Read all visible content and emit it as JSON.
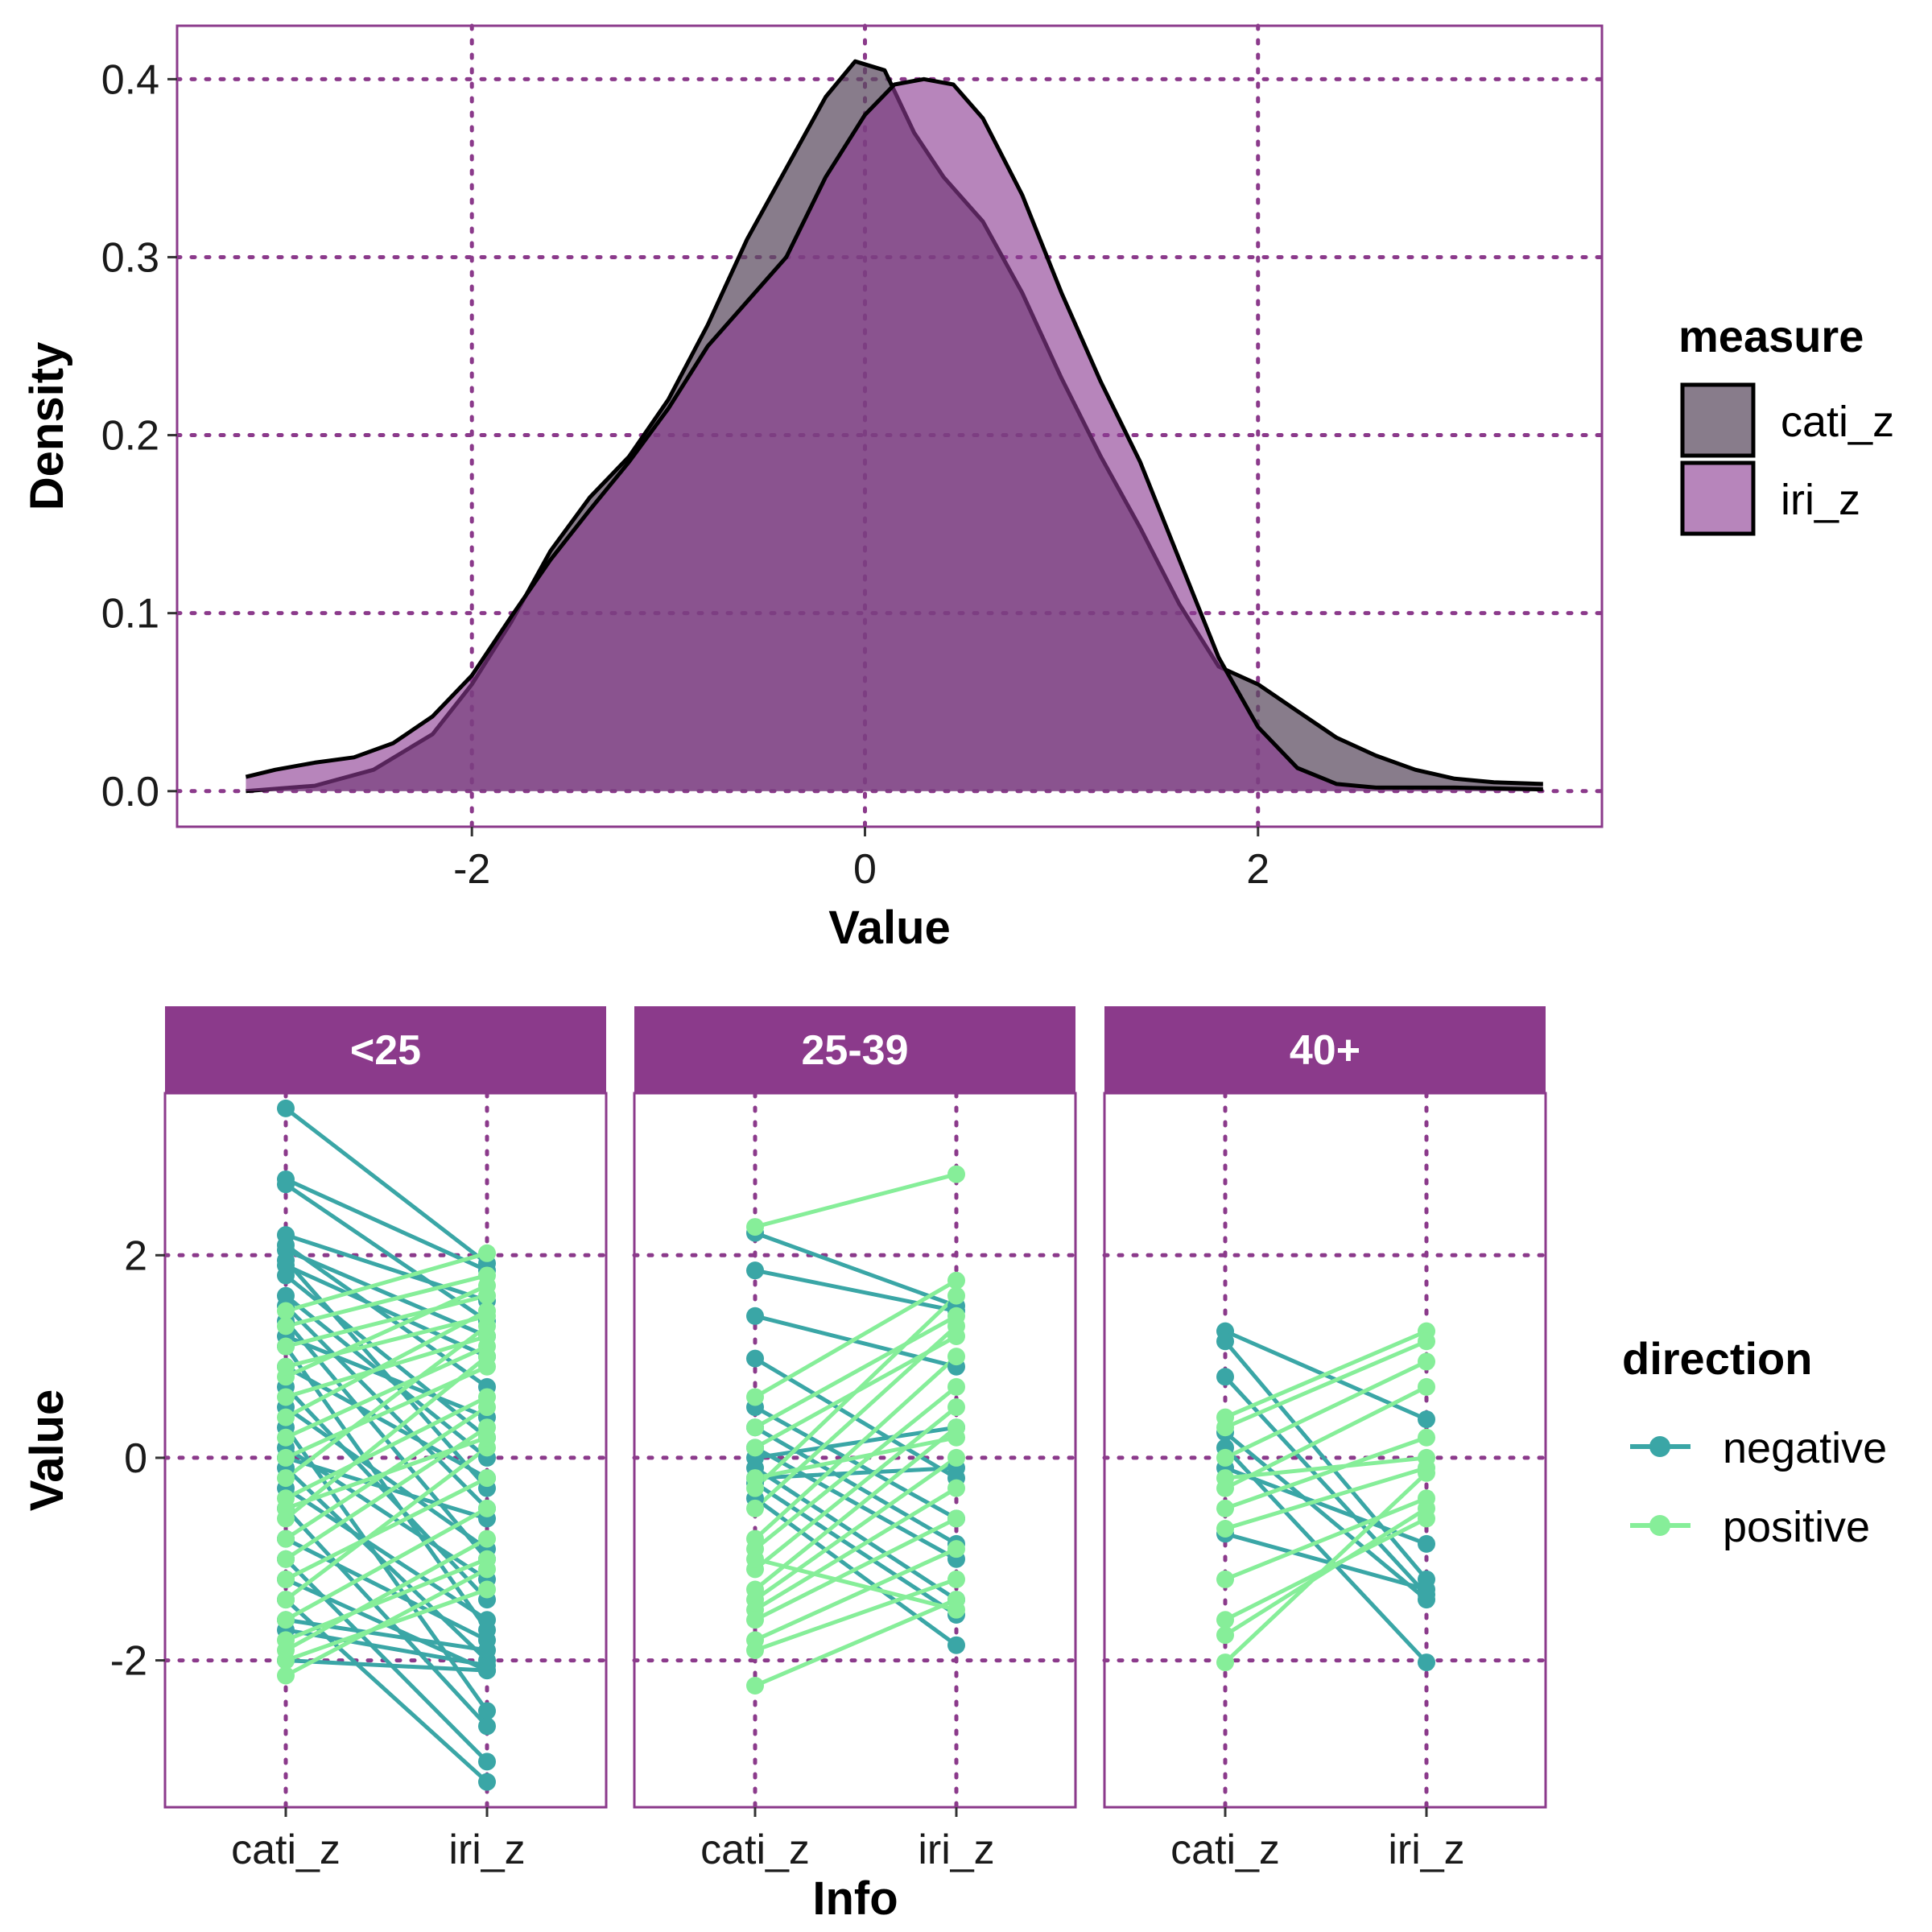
{
  "chart_data": [
    {
      "type": "area",
      "title": "",
      "xlabel": "Value",
      "ylabel": "Density",
      "xlim": [
        -3.5,
        3.75
      ],
      "ylim": [
        -0.02,
        0.43
      ],
      "x_ticks": [
        "-2",
        "0",
        "2"
      ],
      "x_tick_values": [
        -2,
        0,
        2
      ],
      "y_ticks": [
        "0.0",
        "0.1",
        "0.2",
        "0.3",
        "0.4"
      ],
      "y_tick_values": [
        0.0,
        0.1,
        0.2,
        0.3,
        0.4
      ],
      "grid": true,
      "legend": {
        "title": "measure",
        "placement": "right"
      },
      "series": [
        {
          "name": "cati_z",
          "color": "#5a4a5e",
          "points": [
            [
              -3.15,
              0.0
            ],
            [
              -2.8,
              0.003
            ],
            [
              -2.5,
              0.012
            ],
            [
              -2.2,
              0.032
            ],
            [
              -2.0,
              0.06
            ],
            [
              -1.8,
              0.095
            ],
            [
              -1.6,
              0.135
            ],
            [
              -1.4,
              0.165
            ],
            [
              -1.2,
              0.188
            ],
            [
              -1.0,
              0.22
            ],
            [
              -0.8,
              0.262
            ],
            [
              -0.6,
              0.31
            ],
            [
              -0.4,
              0.35
            ],
            [
              -0.2,
              0.39
            ],
            [
              -0.05,
              0.41
            ],
            [
              0.1,
              0.405
            ],
            [
              0.25,
              0.37
            ],
            [
              0.4,
              0.345
            ],
            [
              0.6,
              0.32
            ],
            [
              0.8,
              0.28
            ],
            [
              1.0,
              0.232
            ],
            [
              1.2,
              0.188
            ],
            [
              1.4,
              0.148
            ],
            [
              1.6,
              0.105
            ],
            [
              1.8,
              0.07
            ],
            [
              2.0,
              0.06
            ],
            [
              2.2,
              0.045
            ],
            [
              2.4,
              0.03
            ],
            [
              2.6,
              0.02
            ],
            [
              2.8,
              0.012
            ],
            [
              3.0,
              0.007
            ],
            [
              3.2,
              0.005
            ],
            [
              3.45,
              0.004
            ]
          ]
        },
        {
          "name": "iri_z",
          "color": "#9b59a0",
          "points": [
            [
              -3.15,
              0.008
            ],
            [
              -3.0,
              0.012
            ],
            [
              -2.8,
              0.016
            ],
            [
              -2.6,
              0.019
            ],
            [
              -2.4,
              0.027
            ],
            [
              -2.2,
              0.042
            ],
            [
              -2.0,
              0.065
            ],
            [
              -1.8,
              0.098
            ],
            [
              -1.6,
              0.13
            ],
            [
              -1.4,
              0.158
            ],
            [
              -1.2,
              0.185
            ],
            [
              -1.0,
              0.215
            ],
            [
              -0.8,
              0.25
            ],
            [
              -0.6,
              0.275
            ],
            [
              -0.4,
              0.3
            ],
            [
              -0.2,
              0.345
            ],
            [
              0.0,
              0.38
            ],
            [
              0.15,
              0.397
            ],
            [
              0.3,
              0.4
            ],
            [
              0.45,
              0.397
            ],
            [
              0.6,
              0.378
            ],
            [
              0.8,
              0.335
            ],
            [
              1.0,
              0.28
            ],
            [
              1.2,
              0.23
            ],
            [
              1.4,
              0.185
            ],
            [
              1.6,
              0.13
            ],
            [
              1.8,
              0.075
            ],
            [
              2.0,
              0.036
            ],
            [
              2.2,
              0.013
            ],
            [
              2.4,
              0.004
            ],
            [
              2.6,
              0.002
            ],
            [
              2.8,
              0.002
            ],
            [
              3.0,
              0.002
            ],
            [
              3.45,
              0.001
            ]
          ]
        }
      ]
    },
    {
      "type": "line",
      "title": "",
      "xlabel": "Info",
      "ylabel": "Value",
      "categories": [
        "cati_z",
        "iri_z"
      ],
      "ylim": [
        -3.45,
        3.6
      ],
      "y_ticks": [
        "-2",
        "0",
        "2"
      ],
      "y_tick_values": [
        -2,
        0,
        2
      ],
      "grid": true,
      "legend": {
        "title": "direction",
        "placement": "right"
      },
      "series_names": [
        "negative",
        "positive"
      ],
      "colors": {
        "negative": "#3aa6a6",
        "positive": "#86ee99"
      },
      "facets": [
        {
          "label": "<25",
          "pairs": [
            [
              3.45,
              1.92,
              "negative"
            ],
            [
              2.75,
              1.85,
              "negative"
            ],
            [
              2.7,
              1.35,
              "negative"
            ],
            [
              2.2,
              1.55,
              "negative"
            ],
            [
              2.1,
              0.7,
              "negative"
            ],
            [
              2.05,
              1.2,
              "negative"
            ],
            [
              1.95,
              -0.3,
              "negative"
            ],
            [
              1.9,
              1.0,
              "negative"
            ],
            [
              1.8,
              0.2,
              "negative"
            ],
            [
              1.5,
              -0.5,
              "negative"
            ],
            [
              1.35,
              -1.0,
              "negative"
            ],
            [
              1.2,
              0.4,
              "negative"
            ],
            [
              1.1,
              -1.7,
              "negative"
            ],
            [
              0.9,
              -0.2,
              "negative"
            ],
            [
              0.7,
              -1.4,
              "negative"
            ],
            [
              0.5,
              -0.9,
              "negative"
            ],
            [
              0.3,
              -2.5,
              "negative"
            ],
            [
              0.1,
              -1.2,
              "negative"
            ],
            [
              -0.1,
              -2.0,
              "negative"
            ],
            [
              -0.3,
              -1.6,
              "negative"
            ],
            [
              -0.5,
              -2.65,
              "negative"
            ],
            [
              -0.8,
              -1.8,
              "negative"
            ],
            [
              -1.0,
              -3.0,
              "negative"
            ],
            [
              -1.2,
              -2.1,
              "negative"
            ],
            [
              -1.4,
              -3.2,
              "negative"
            ],
            [
              -1.6,
              -1.9,
              "negative"
            ],
            [
              -1.7,
              -2.05,
              "negative"
            ],
            [
              -2.0,
              -2.1,
              "negative"
            ],
            [
              1.6,
              0.0,
              "negative"
            ],
            [
              0.0,
              -0.6,
              "negative"
            ],
            [
              1.45,
              2.02,
              "positive"
            ],
            [
              1.3,
              1.8,
              "positive"
            ],
            [
              1.1,
              1.6,
              "positive"
            ],
            [
              0.8,
              1.7,
              "positive"
            ],
            [
              0.6,
              1.2,
              "positive"
            ],
            [
              0.4,
              1.45,
              "positive"
            ],
            [
              0.2,
              1.1,
              "positive"
            ],
            [
              0.0,
              0.9,
              "positive"
            ],
            [
              -0.2,
              1.3,
              "positive"
            ],
            [
              -0.4,
              0.6,
              "positive"
            ],
            [
              -0.6,
              1.0,
              "positive"
            ],
            [
              -0.8,
              0.5,
              "positive"
            ],
            [
              -1.0,
              0.3,
              "positive"
            ],
            [
              -1.2,
              -0.2,
              "positive"
            ],
            [
              -1.4,
              0.1,
              "positive"
            ],
            [
              -1.6,
              -0.5,
              "positive"
            ],
            [
              -1.8,
              -1.0,
              "positive"
            ],
            [
              -1.9,
              -0.8,
              "positive"
            ],
            [
              -2.0,
              -1.3,
              "positive"
            ],
            [
              -2.15,
              -1.1,
              "positive"
            ],
            [
              0.9,
              1.4,
              "positive"
            ],
            [
              -0.5,
              0.2,
              "positive"
            ]
          ]
        },
        {
          "label": "25-39",
          "pairs": [
            [
              2.28,
              2.8,
              "positive"
            ],
            [
              0.6,
              1.75,
              "positive"
            ],
            [
              0.3,
              1.4,
              "positive"
            ],
            [
              -0.3,
              1.6,
              "positive"
            ],
            [
              -0.5,
              1.3,
              "positive"
            ],
            [
              -0.8,
              1.0,
              "positive"
            ],
            [
              -0.9,
              0.7,
              "positive"
            ],
            [
              -1.1,
              0.5,
              "positive"
            ],
            [
              -1.3,
              0.3,
              "positive"
            ],
            [
              -1.4,
              0.0,
              "positive"
            ],
            [
              -1.5,
              -0.3,
              "positive"
            ],
            [
              -1.6,
              -0.6,
              "positive"
            ],
            [
              -1.8,
              -0.9,
              "positive"
            ],
            [
              -1.9,
              -1.2,
              "positive"
            ],
            [
              -2.25,
              -1.4,
              "positive"
            ],
            [
              -1.0,
              -1.5,
              "positive"
            ],
            [
              0.1,
              1.2,
              "positive"
            ],
            [
              -0.2,
              0.2,
              "positive"
            ],
            [
              2.22,
              1.5,
              "negative"
            ],
            [
              1.85,
              1.45,
              "negative"
            ],
            [
              1.4,
              0.9,
              "negative"
            ],
            [
              0.98,
              -0.2,
              "negative"
            ],
            [
              0.5,
              -0.6,
              "negative"
            ],
            [
              0.3,
              -0.85,
              "negative"
            ],
            [
              0.1,
              -1.0,
              "negative"
            ],
            [
              -0.1,
              -1.4,
              "negative"
            ],
            [
              -0.25,
              -1.55,
              "negative"
            ],
            [
              -0.4,
              -1.85,
              "negative"
            ],
            [
              -0.2,
              -0.1,
              "negative"
            ],
            [
              0.0,
              0.3,
              "negative"
            ]
          ]
        },
        {
          "label": "40+",
          "pairs": [
            [
              1.25,
              0.38,
              "negative"
            ],
            [
              1.15,
              -1.2,
              "negative"
            ],
            [
              0.8,
              -1.35,
              "negative"
            ],
            [
              0.25,
              -1.4,
              "negative"
            ],
            [
              0.1,
              -2.02,
              "negative"
            ],
            [
              -0.1,
              -0.85,
              "negative"
            ],
            [
              -0.75,
              -1.3,
              "negative"
            ],
            [
              0.4,
              1.25,
              "positive"
            ],
            [
              0.3,
              1.15,
              "positive"
            ],
            [
              0.0,
              0.95,
              "positive"
            ],
            [
              -0.3,
              0.7,
              "positive"
            ],
            [
              -0.5,
              0.2,
              "positive"
            ],
            [
              -0.7,
              -0.1,
              "positive"
            ],
            [
              -1.2,
              -0.4,
              "positive"
            ],
            [
              -1.6,
              -0.6,
              "positive"
            ],
            [
              -1.75,
              -0.5,
              "positive"
            ],
            [
              -2.02,
              -0.15,
              "positive"
            ],
            [
              -0.2,
              0.0,
              "positive"
            ]
          ]
        }
      ]
    }
  ]
}
